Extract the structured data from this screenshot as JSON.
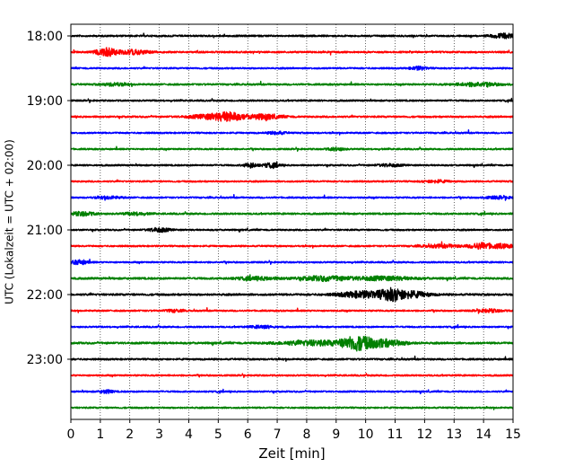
{
  "chart_data": {
    "type": "line",
    "title": "",
    "xlabel": "Zeit  [min]",
    "ylabel": "UTC (Lokalzeit = UTC + 02:00)",
    "xlim": [
      0,
      15
    ],
    "x_ticks": [
      "0",
      "1",
      "2",
      "3",
      "4",
      "5",
      "6",
      "7",
      "8",
      "9",
      "10",
      "11",
      "12",
      "13",
      "14",
      "15"
    ],
    "y_ticks": [
      "18:00",
      "19:00",
      "20:00",
      "21:00",
      "22:00",
      "23:00"
    ],
    "y_tick_trace_index": [
      0,
      4,
      8,
      12,
      16,
      20
    ],
    "grid": "vertical-dotted",
    "legend": "none",
    "trace_colors": [
      "#000000",
      "#ff0000",
      "#0000ff",
      "#008000"
    ],
    "trace_interval_min": 15,
    "traces": [
      {
        "start": "18:00",
        "color": "#000000",
        "base": 0.22,
        "events": [
          {
            "t": 14.7,
            "amp": 0.55,
            "w": 0.3
          }
        ]
      },
      {
        "start": "18:15",
        "color": "#ff0000",
        "base": 0.22,
        "events": [
          {
            "t": 1.2,
            "amp": 1.0,
            "w": 0.25
          },
          {
            "t": 2.1,
            "amp": 0.5,
            "w": 0.4
          }
        ]
      },
      {
        "start": "18:30",
        "color": "#0000ff",
        "base": 0.2,
        "events": [
          {
            "t": 11.8,
            "amp": 0.4,
            "w": 0.2
          }
        ]
      },
      {
        "start": "18:45",
        "color": "#008000",
        "base": 0.22,
        "events": [
          {
            "t": 1.5,
            "amp": 0.35,
            "w": 0.3
          },
          {
            "t": 13.8,
            "amp": 0.45,
            "w": 0.5
          }
        ]
      },
      {
        "start": "19:00",
        "color": "#000000",
        "base": 0.2,
        "events": []
      },
      {
        "start": "19:15",
        "color": "#ff0000",
        "base": 0.22,
        "events": [
          {
            "t": 4.8,
            "amp": 0.65,
            "w": 0.5
          },
          {
            "t": 5.4,
            "amp": 0.9,
            "w": 0.25
          },
          {
            "t": 6.5,
            "amp": 0.6,
            "w": 0.45
          }
        ]
      },
      {
        "start": "19:30",
        "color": "#0000ff",
        "base": 0.2,
        "events": [
          {
            "t": 7.0,
            "amp": 0.35,
            "w": 0.2
          }
        ]
      },
      {
        "start": "19:45",
        "color": "#008000",
        "base": 0.2,
        "events": [
          {
            "t": 9.0,
            "amp": 0.35,
            "w": 0.2
          }
        ]
      },
      {
        "start": "20:00",
        "color": "#000000",
        "base": 0.2,
        "events": [
          {
            "t": 6.1,
            "amp": 0.6,
            "w": 0.15
          },
          {
            "t": 6.8,
            "amp": 0.55,
            "w": 0.2
          },
          {
            "t": 10.8,
            "amp": 0.3,
            "w": 0.3
          }
        ]
      },
      {
        "start": "20:15",
        "color": "#ff0000",
        "base": 0.2,
        "events": [
          {
            "t": 12.4,
            "amp": 0.3,
            "w": 0.3
          }
        ]
      },
      {
        "start": "20:30",
        "color": "#0000ff",
        "base": 0.2,
        "events": [
          {
            "t": 1.3,
            "amp": 0.3,
            "w": 0.3
          },
          {
            "t": 14.5,
            "amp": 0.3,
            "w": 0.3
          }
        ]
      },
      {
        "start": "20:45",
        "color": "#008000",
        "base": 0.22,
        "events": [
          {
            "t": 0.4,
            "amp": 0.45,
            "w": 0.3
          },
          {
            "t": 2.2,
            "amp": 0.3,
            "w": 0.3
          }
        ]
      },
      {
        "start": "21:00",
        "color": "#000000",
        "base": 0.2,
        "events": [
          {
            "t": 3.0,
            "amp": 0.5,
            "w": 0.25
          }
        ]
      },
      {
        "start": "21:15",
        "color": "#ff0000",
        "base": 0.2,
        "events": [
          {
            "t": 12.6,
            "amp": 0.35,
            "w": 0.5
          },
          {
            "t": 13.9,
            "amp": 0.75,
            "w": 0.25
          },
          {
            "t": 14.6,
            "amp": 0.5,
            "w": 0.3
          }
        ]
      },
      {
        "start": "21:30",
        "color": "#0000ff",
        "base": 0.2,
        "events": [
          {
            "t": 0.3,
            "amp": 0.55,
            "w": 0.2
          }
        ]
      },
      {
        "start": "21:45",
        "color": "#008000",
        "base": 0.25,
        "events": [
          {
            "t": 6.3,
            "amp": 0.35,
            "w": 0.5
          },
          {
            "t": 8.6,
            "amp": 0.55,
            "w": 0.6
          },
          {
            "t": 10.6,
            "amp": 0.45,
            "w": 0.7
          }
        ]
      },
      {
        "start": "22:00",
        "color": "#000000",
        "base": 0.25,
        "events": [
          {
            "t": 9.9,
            "amp": 0.8,
            "w": 0.55
          },
          {
            "t": 10.9,
            "amp": 1.3,
            "w": 0.3
          },
          {
            "t": 11.6,
            "amp": 0.7,
            "w": 0.4
          }
        ]
      },
      {
        "start": "22:15",
        "color": "#ff0000",
        "base": 0.2,
        "events": [
          {
            "t": 3.5,
            "amp": 0.3,
            "w": 0.2
          },
          {
            "t": 14.2,
            "amp": 0.35,
            "w": 0.3
          }
        ]
      },
      {
        "start": "22:30",
        "color": "#0000ff",
        "base": 0.2,
        "events": [
          {
            "t": 6.5,
            "amp": 0.3,
            "w": 0.3
          }
        ]
      },
      {
        "start": "22:45",
        "color": "#008000",
        "base": 0.25,
        "events": [
          {
            "t": 8.3,
            "amp": 0.6,
            "w": 0.8
          },
          {
            "t": 9.7,
            "amp": 1.6,
            "w": 0.35
          },
          {
            "t": 10.6,
            "amp": 0.9,
            "w": 0.5
          }
        ]
      },
      {
        "start": "23:00",
        "color": "#000000",
        "base": 0.22,
        "events": []
      },
      {
        "start": "23:15",
        "color": "#ff0000",
        "base": 0.2,
        "events": []
      },
      {
        "start": "23:30",
        "color": "#0000ff",
        "base": 0.2,
        "events": [
          {
            "t": 1.2,
            "amp": 0.4,
            "w": 0.15
          }
        ]
      },
      {
        "start": "23:45",
        "color": "#008000",
        "base": 0.2,
        "events": []
      }
    ]
  }
}
